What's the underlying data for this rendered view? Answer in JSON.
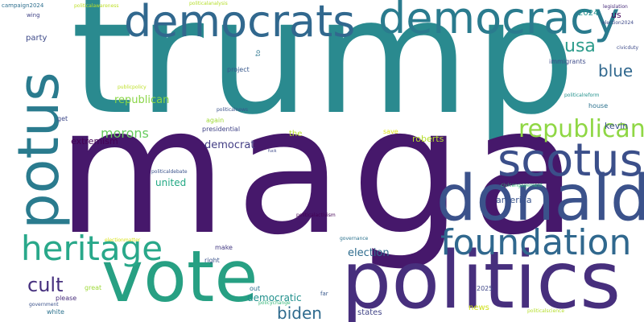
{
  "words": [
    {
      "text": "trump",
      "color": "#2a8a8f"
    },
    {
      "text": "maga",
      "color": "#46186b"
    },
    {
      "text": "politics",
      "color": "#472f7d"
    },
    {
      "text": "vote",
      "color": "#27a083"
    },
    {
      "text": "democrats",
      "color": "#31688e"
    },
    {
      "text": "democracy",
      "color": "#2a7b8e"
    },
    {
      "text": "donald",
      "color": "#3b528b"
    },
    {
      "text": "potus",
      "color": "#2a7b8e"
    },
    {
      "text": "scotus",
      "color": "#3b4f8a"
    },
    {
      "text": "foundation",
      "color": "#30688e"
    },
    {
      "text": "heritage",
      "color": "#29a88a"
    },
    {
      "text": "republicans",
      "color": "#8fd744"
    },
    {
      "text": "cult",
      "color": "#46307e"
    },
    {
      "text": "usa",
      "color": "#2d9c8c"
    },
    {
      "text": "blue",
      "color": "#31688e"
    },
    {
      "text": "biden",
      "color": "#2f6b8e"
    },
    {
      "text": "morons",
      "color": "#66cb5d"
    },
    {
      "text": "republican",
      "color": "#8ad547"
    },
    {
      "text": "democrat",
      "color": "#433e85"
    },
    {
      "text": "election",
      "color": "#2f6c8e"
    },
    {
      "text": "united",
      "color": "#22a884"
    },
    {
      "text": "democratic",
      "color": "#21908c"
    },
    {
      "text": "extremism",
      "color": "#440154"
    },
    {
      "text": "kevin",
      "color": "#3b518b"
    },
    {
      "text": "roberts",
      "color": "#b5de2b"
    },
    {
      "text": "america",
      "color": "#3a548c"
    },
    {
      "text": "party",
      "color": "#3e4a89"
    },
    {
      "text": "the",
      "color": "#b8de29"
    },
    {
      "text": "2024",
      "color": "#21918c"
    },
    {
      "text": "us",
      "color": "#46075a"
    },
    {
      "text": "campaign2024",
      "color": "#2e6f8e"
    },
    {
      "text": "politicalawareness",
      "color": "#bddf26"
    },
    {
      "text": "politicalanalysis",
      "color": "#b5de2b"
    },
    {
      "text": "wing",
      "color": "#414487"
    },
    {
      "text": "to",
      "color": "#2b758e"
    },
    {
      "text": "project",
      "color": "#38588c"
    },
    {
      "text": "immigrants",
      "color": "#3e4c8a"
    },
    {
      "text": "legislation",
      "color": "#472c7a"
    },
    {
      "text": "election2024",
      "color": "#3e4a89"
    },
    {
      "text": "civicduty",
      "color": "#3e4c8a"
    },
    {
      "text": "publicpolicy",
      "color": "#bddf26"
    },
    {
      "text": "politicalnews",
      "color": "#3b528b"
    },
    {
      "text": "get",
      "color": "#3e4989"
    },
    {
      "text": "again",
      "color": "#a0da39"
    },
    {
      "text": "presidential",
      "color": "#414487"
    },
    {
      "text": "save",
      "color": "#dde318"
    },
    {
      "text": "fuck",
      "color": "#3e4989"
    },
    {
      "text": "politicalreform",
      "color": "#21918c"
    },
    {
      "text": "house",
      "color": "#2c728e"
    },
    {
      "text": "politicaldebate",
      "color": "#3b528b"
    },
    {
      "text": "civicengagement",
      "color": "#35b779"
    },
    {
      "text": "politicalactivism",
      "color": "#440154"
    },
    {
      "text": "electionmatter",
      "color": "#d8e219"
    },
    {
      "text": "governance",
      "color": "#2c728e"
    },
    {
      "text": "make",
      "color": "#443a83"
    },
    {
      "text": "right",
      "color": "#3b528b"
    },
    {
      "text": "great",
      "color": "#9fda3a"
    },
    {
      "text": "out",
      "color": "#2d708e"
    },
    {
      "text": "policychange",
      "color": "#35b779"
    },
    {
      "text": "far",
      "color": "#38588c"
    },
    {
      "text": "please",
      "color": "#472d7b"
    },
    {
      "text": "2025",
      "color": "#3f4788"
    },
    {
      "text": "government",
      "color": "#3b528b"
    },
    {
      "text": "white",
      "color": "#2c728e"
    },
    {
      "text": "states",
      "color": "#414487"
    },
    {
      "text": "news",
      "color": "#d0e11c"
    },
    {
      "text": "politicalscience",
      "color": "#b5de2b"
    }
  ]
}
